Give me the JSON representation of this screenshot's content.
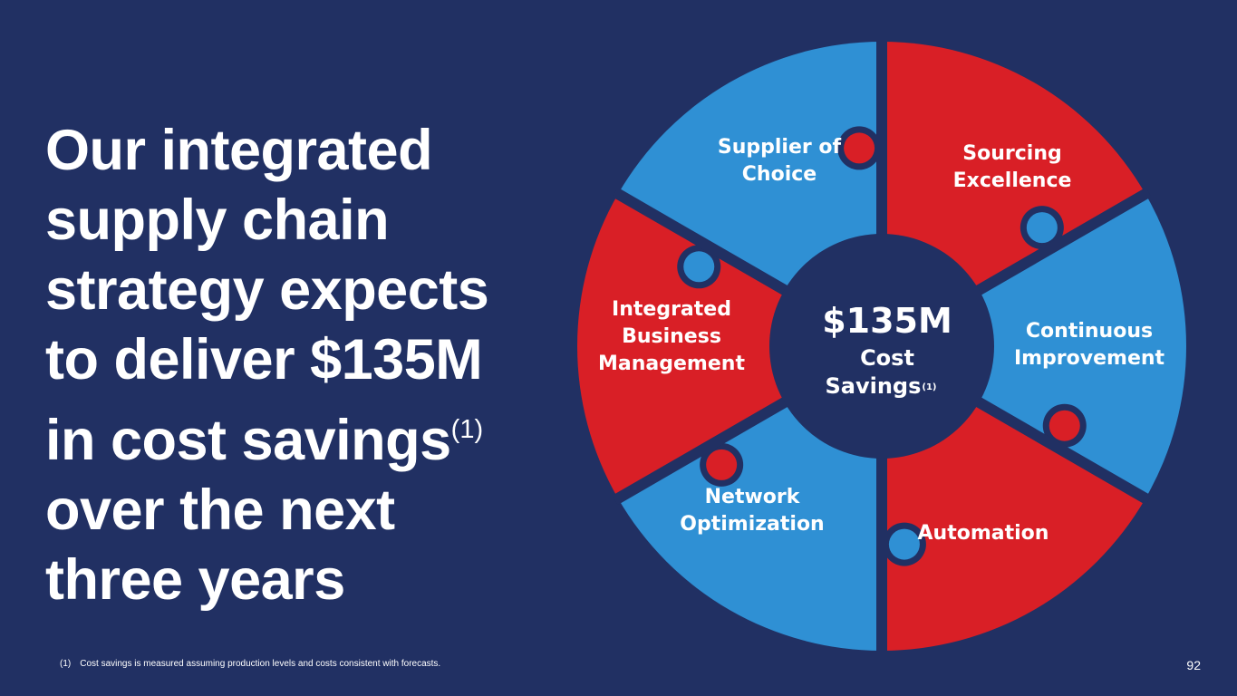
{
  "headline": {
    "lines": [
      "Our integrated",
      "supply chain",
      "strategy expects",
      "to deliver $135M",
      "in cost savings",
      "over the next",
      "three years"
    ],
    "footnote_marker": "(1)"
  },
  "wheel": {
    "colors": {
      "red": "#d91f26",
      "blue": "#2f90d4",
      "navy": "#213063"
    },
    "segments": [
      {
        "name": "supplier-of-choice",
        "lines": [
          "Supplier of",
          "Choice"
        ],
        "color": "blue"
      },
      {
        "name": "sourcing-excellence",
        "lines": [
          "Sourcing",
          "Excellence"
        ],
        "color": "red"
      },
      {
        "name": "continuous-improvement",
        "lines": [
          "Continuous",
          "Improvement"
        ],
        "color": "blue"
      },
      {
        "name": "automation",
        "lines": [
          "Automation"
        ],
        "color": "red"
      },
      {
        "name": "network-optimization",
        "lines": [
          "Network",
          "Optimization"
        ],
        "color": "blue"
      },
      {
        "name": "integrated-business-management",
        "lines": [
          "Integrated",
          "Business",
          "Management"
        ],
        "color": "red"
      }
    ],
    "center": {
      "amount": "$135M",
      "line1": "Cost",
      "line2": "Savings",
      "footnote_marker": "(1)"
    }
  },
  "footnote": {
    "marker": "(1)",
    "text": "Cost savings is measured assuming production levels and costs consistent with forecasts."
  },
  "page_number": "92"
}
